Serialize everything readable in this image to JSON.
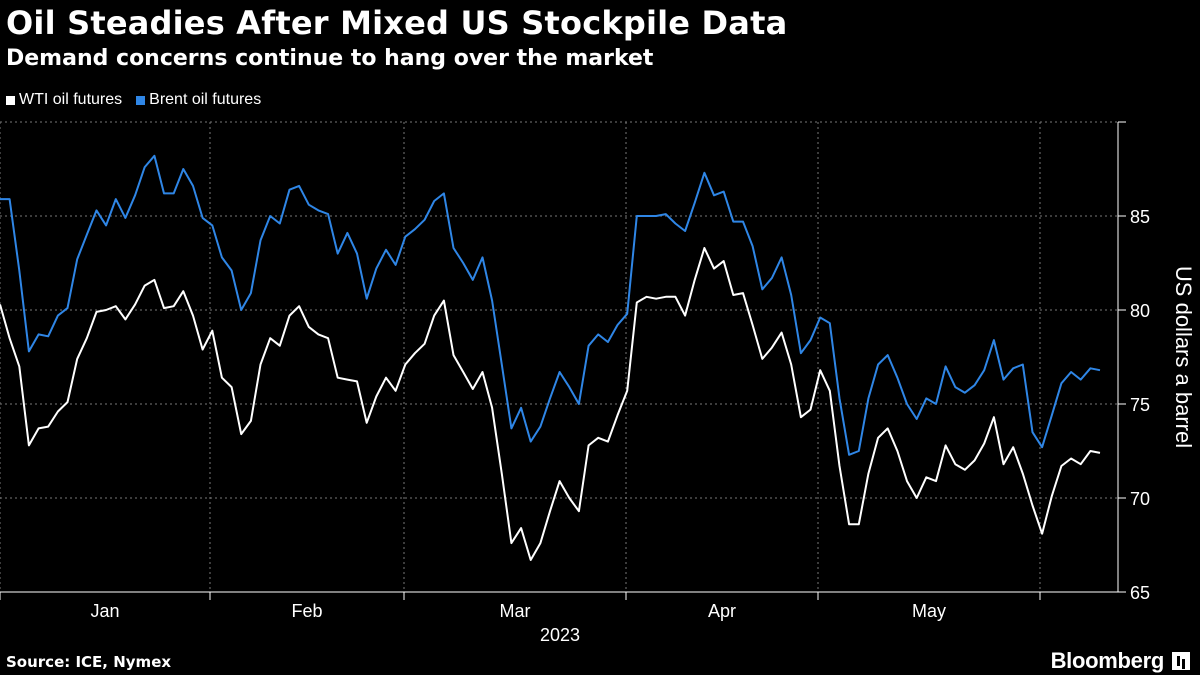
{
  "header": {
    "title": "Oil Steadies After Mixed US Stockpile Data",
    "subtitle": "Demand concerns continue to hang over the market"
  },
  "legend": {
    "wti_label": "WTI oil futures",
    "brent_label": "Brent oil futures"
  },
  "footer": {
    "source": "Source: ICE, Nymex",
    "brand": "Bloomberg"
  },
  "colors": {
    "wti": "#ffffff",
    "brent": "#2f86e6",
    "grid": "#777777",
    "background": "#000000"
  },
  "chart_data": {
    "type": "line",
    "title": "Oil Steadies After Mixed US Stockpile Data",
    "subtitle": "Demand concerns continue to hang over the market",
    "xlabel": "2023",
    "ylabel": "US dollars a barrel",
    "ylim": [
      65,
      90
    ],
    "yticks": [
      65,
      70,
      75,
      80,
      85
    ],
    "month_labels": [
      "Jan",
      "Feb",
      "Mar",
      "Apr",
      "May"
    ],
    "year_label": "2023",
    "grid": true,
    "legend_position": "top-left",
    "series": [
      {
        "name": "WTI oil futures",
        "values": [
          80.3,
          78.5,
          77.0,
          72.8,
          73.7,
          73.8,
          74.6,
          75.1,
          77.4,
          78.5,
          79.9,
          80.0,
          80.2,
          79.5,
          80.3,
          81.3,
          81.6,
          80.1,
          80.2,
          81.0,
          79.7,
          77.9,
          78.9,
          76.4,
          75.9,
          73.4,
          74.1,
          77.1,
          78.5,
          78.1,
          79.7,
          80.2,
          79.1,
          78.7,
          78.5,
          76.4,
          76.3,
          76.2,
          74.0,
          75.4,
          76.4,
          75.7,
          77.1,
          77.7,
          78.2,
          79.7,
          80.5,
          77.6,
          76.7,
          75.8,
          76.7,
          74.8,
          71.3,
          67.6,
          68.4,
          66.7,
          67.6,
          69.3,
          70.9,
          70.0,
          69.3,
          72.8,
          73.2,
          73.0,
          74.4,
          75.7,
          80.4,
          80.7,
          80.6,
          80.7,
          80.7,
          79.7,
          81.6,
          83.3,
          82.2,
          82.6,
          80.8,
          80.9,
          79.2,
          77.4,
          78.0,
          78.8,
          77.1,
          74.3,
          74.7,
          76.8,
          75.7,
          71.7,
          68.6,
          68.6,
          71.3,
          73.2,
          73.7,
          72.5,
          70.9,
          70.0,
          71.1,
          70.9,
          72.8,
          71.8,
          71.5,
          72.0,
          72.9,
          74.3,
          71.8,
          72.7,
          71.3,
          69.6,
          68.1,
          70.1,
          71.7,
          72.1,
          71.8,
          72.5,
          72.4
        ]
      },
      {
        "name": "Brent oil futures",
        "values": [
          85.9,
          85.9,
          82.1,
          77.8,
          78.7,
          78.6,
          79.7,
          80.1,
          82.7,
          84.0,
          85.3,
          84.5,
          85.9,
          84.9,
          86.1,
          87.6,
          88.2,
          86.2,
          86.2,
          87.5,
          86.6,
          84.9,
          84.5,
          82.8,
          82.1,
          80.0,
          80.9,
          83.7,
          85.0,
          84.6,
          86.4,
          86.6,
          85.6,
          85.3,
          85.1,
          83.0,
          84.1,
          83.0,
          80.6,
          82.2,
          83.2,
          82.4,
          83.9,
          84.3,
          84.8,
          85.8,
          86.2,
          83.3,
          82.5,
          81.6,
          82.8,
          80.5,
          77.1,
          73.7,
          74.8,
          73.0,
          73.8,
          75.3,
          76.7,
          75.9,
          75.0,
          78.1,
          78.7,
          78.3,
          79.2,
          79.8,
          85.0,
          85.0,
          85.0,
          85.1,
          84.6,
          84.2,
          85.7,
          87.3,
          86.1,
          86.3,
          84.7,
          84.7,
          83.4,
          81.1,
          81.7,
          82.8,
          80.8,
          77.7,
          78.4,
          79.6,
          79.3,
          75.3,
          72.3,
          72.5,
          75.3,
          77.1,
          77.6,
          76.4,
          75.0,
          74.2,
          75.3,
          75.0,
          77.0,
          75.9,
          75.6,
          76.0,
          76.8,
          78.4,
          76.3,
          76.9,
          77.1,
          73.5,
          72.7,
          74.4,
          76.1,
          76.7,
          76.3,
          76.9,
          76.8
        ]
      }
    ]
  }
}
